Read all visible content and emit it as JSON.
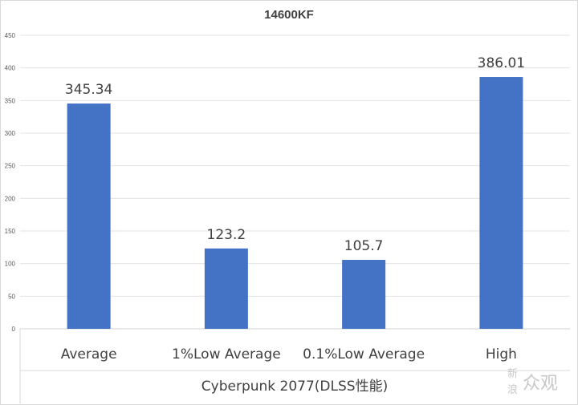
{
  "chart_data": {
    "type": "bar",
    "title": "14600KF",
    "xlabel": "Cyberpunk 2077(DLSS性能)",
    "ylabel": "",
    "categories": [
      "Average",
      "1%Low Average",
      "0.1%Low Average",
      "High"
    ],
    "values": [
      345.34,
      123.2,
      105.7,
      386.01
    ],
    "data_labels": [
      "345.34",
      "123.2",
      "105.7",
      "386.01"
    ],
    "yticks": [
      0,
      50,
      100,
      150,
      200,
      250,
      300,
      350,
      400,
      450
    ],
    "ylim": [
      0,
      450
    ],
    "grid": true,
    "legend": "none",
    "bar_color": "#4472c4"
  },
  "watermark": {
    "line1": "新",
    "line2": "浪",
    "brand": "众观"
  }
}
